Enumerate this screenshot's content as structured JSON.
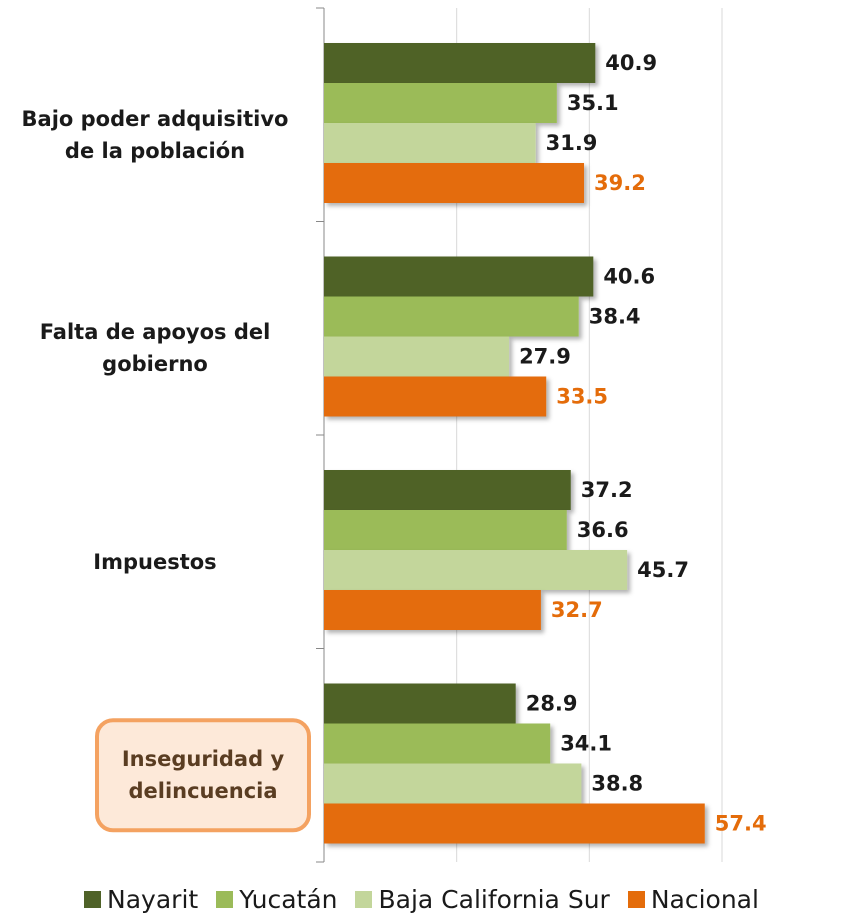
{
  "chart_data": {
    "type": "barh",
    "categories": [
      "Bajo poder adquisitivo\nde la población",
      "Falta de apoyos del\ngobierno",
      "Impuestos",
      "Inseguridad y\ndelincuencia"
    ],
    "series": [
      {
        "name": "Nayarit",
        "color": "#4f6228",
        "label_color": "#1a1a1a",
        "values": [
          40.9,
          40.6,
          37.2,
          28.9
        ]
      },
      {
        "name": "Yucatán",
        "color": "#9bbb59",
        "label_color": "#1a1a1a",
        "values": [
          35.1,
          38.4,
          36.6,
          34.1
        ]
      },
      {
        "name": "Baja California Sur",
        "color": "#c3d69b",
        "label_color": "#1a1a1a",
        "values": [
          31.9,
          27.9,
          45.7,
          38.8
        ]
      },
      {
        "name": "Nacional",
        "color": "#e46c0a",
        "label_color": "#e46c0a",
        "values": [
          39.2,
          33.5,
          32.7,
          57.4
        ]
      }
    ],
    "xlim": [
      0,
      60
    ],
    "xticks": [
      0,
      20,
      40,
      60
    ],
    "grid": true,
    "legend": "bottom",
    "highlight_category": 3
  }
}
